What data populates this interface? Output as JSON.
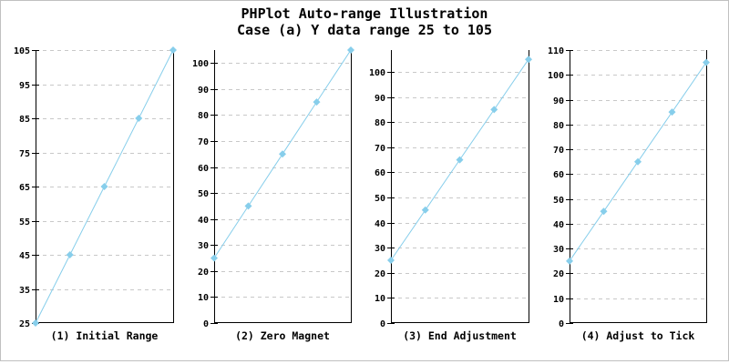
{
  "title": {
    "line1": "PHPlot Auto-range Illustration",
    "line2": "Case (a) Y data range 25 to 105"
  },
  "colors": {
    "line": "#87CEEB",
    "grid": "#C8C8C8",
    "axis": "#000000",
    "text": "#000000",
    "background": "#FFFFFF",
    "border": "#C0C0C0"
  },
  "style": {
    "marker_shape": "diamond",
    "grid_style": "dashed-horizontal",
    "legend": "none"
  },
  "chart_data": [
    {
      "type": "line",
      "title": "(1) Initial Range",
      "x": [
        1,
        2,
        3,
        4,
        5
      ],
      "values": [
        25,
        45,
        65,
        85,
        105
      ],
      "ylim": [
        25,
        105
      ],
      "yticks": [
        25,
        35,
        45,
        55,
        65,
        75,
        85,
        95,
        105
      ],
      "grid": true
    },
    {
      "type": "line",
      "title": "(2) Zero Magnet",
      "x": [
        1,
        2,
        3,
        4,
        5
      ],
      "values": [
        25,
        45,
        65,
        85,
        105
      ],
      "ylim": [
        0,
        105
      ],
      "yticks": [
        0,
        10,
        20,
        30,
        40,
        50,
        60,
        70,
        80,
        90,
        100
      ],
      "grid": true
    },
    {
      "type": "line",
      "title": "(3) End Adjustment",
      "x": [
        1,
        2,
        3,
        4,
        5
      ],
      "values": [
        25,
        45,
        65,
        85,
        105
      ],
      "ylim": [
        0,
        108.7
      ],
      "yticks": [
        0,
        10,
        20,
        30,
        40,
        50,
        60,
        70,
        80,
        90,
        100
      ],
      "grid": true
    },
    {
      "type": "line",
      "title": "(4) Adjust to Tick",
      "x": [
        1,
        2,
        3,
        4,
        5
      ],
      "values": [
        25,
        45,
        65,
        85,
        105
      ],
      "ylim": [
        0,
        110
      ],
      "yticks": [
        0,
        10,
        20,
        30,
        40,
        50,
        60,
        70,
        80,
        90,
        100,
        110
      ],
      "grid": true
    }
  ]
}
